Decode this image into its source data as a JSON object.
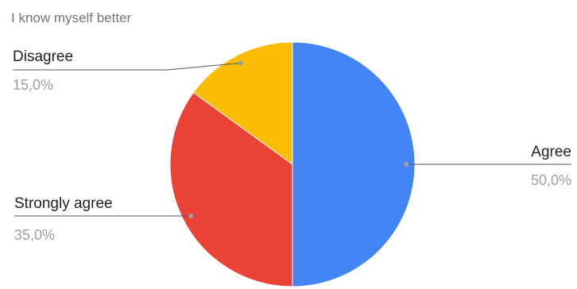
{
  "chart_data": {
    "type": "pie",
    "title": "I know myself better",
    "categories": [
      "Agree",
      "Strongly agree",
      "Disagree"
    ],
    "values": [
      50.0,
      35.0,
      15.0
    ],
    "value_labels": [
      "50,0%",
      "35,0%",
      "15,0%"
    ],
    "colors": [
      "#4285f4",
      "#ea4335",
      "#fbbc04"
    ],
    "start_angle_deg": 0,
    "direction": "clockwise",
    "legend": "labels-outside-with-leader-lines"
  }
}
